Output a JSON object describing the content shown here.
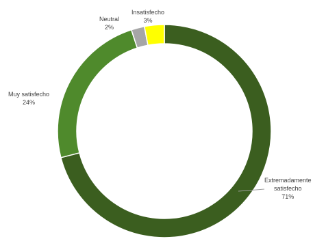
{
  "chart_data": {
    "type": "pie",
    "variant": "donut",
    "categories": [
      "Extremadamente satisfecho",
      "Muy satisfecho",
      "Neutral",
      "Insatisfecho"
    ],
    "values": [
      71,
      24,
      2,
      3
    ],
    "colors": [
      "#3b5e1f",
      "#4f8a2c",
      "#a6a6a6",
      "#ffff00"
    ],
    "slice_borders": [
      "#ffffff",
      "#ffffff",
      "#ffffff",
      "#ffffff"
    ],
    "title": "",
    "legend": "none",
    "data_labels": [
      {
        "name_line1": "Extremadamente",
        "name_line2": "satisfecho",
        "pct": "71%"
      },
      {
        "name_line1": "Muy satisfecho",
        "name_line2": "",
        "pct": "24%"
      },
      {
        "name_line1": "Neutral",
        "name_line2": "",
        "pct": "2%"
      },
      {
        "name_line1": "Insatisfecho",
        "name_line2": "",
        "pct": "3%"
      }
    ]
  }
}
